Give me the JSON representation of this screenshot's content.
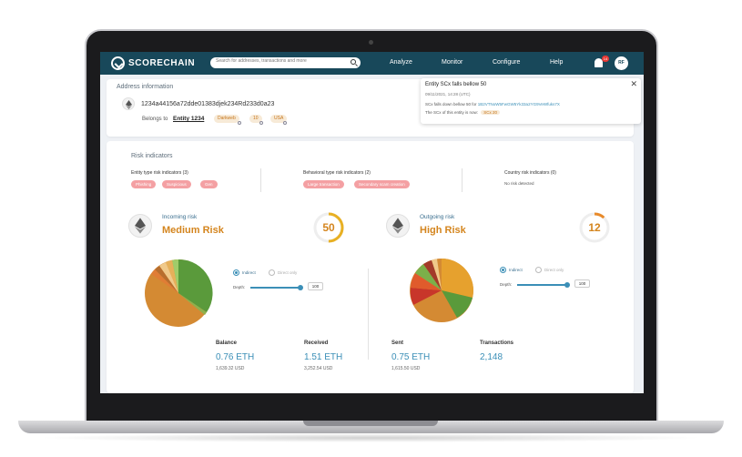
{
  "colors": {
    "nav": "#18485a",
    "accent": "#3b8fb7",
    "risk": "#d4851e",
    "pill_red": "#f4a0a3"
  },
  "nav": {
    "logo": "SCORECHAIN",
    "search_placeholder": "Search for addresses, transactions and more",
    "menu": [
      "Analyze",
      "Monitor",
      "Configure",
      "Help"
    ],
    "notification_count": "14",
    "avatar_initials": "RF"
  },
  "address": {
    "section_title": "Address information",
    "hash": "1234a44156a72dde01383djek234Rd233d0a23",
    "belongs_to_label": "Belongs to",
    "entity": "Entity 1234",
    "tags": [
      "Darkweb",
      "10",
      "USA"
    ]
  },
  "notification": {
    "title": "Entity SCx falls bellow 50",
    "date": "09/11/2021, 14:28 (UTC)",
    "line1_prefix": "SCx falls down bellow 50 for",
    "line1_address": "1B2VTNoW5FwGW5Yk33a2YG9VeWfuks7X",
    "line2_prefix": "The SCx of this entity is now:",
    "line2_value": "SCx 20"
  },
  "risk": {
    "section_title": "Risk indicators",
    "entity_type": {
      "title": "Entity type risk indicators (3)",
      "pills": [
        "Phishing",
        "Suspicious",
        "Gen"
      ]
    },
    "behavioral": {
      "title": "Behavioral type risk indicators (2)",
      "pills": [
        "Large transaction",
        "Secondary scam creation"
      ]
    },
    "country": {
      "title": "Country risk indicators (0)",
      "empty": "No risk detected"
    },
    "incoming": {
      "label": "Incoming risk",
      "level": "Medium Risk",
      "score": "50",
      "score_fraction": 0.5
    },
    "outgoing": {
      "label": "Outgoing risk",
      "level": "High Risk",
      "score": "12",
      "score_fraction": 0.12
    },
    "options": {
      "indirect": "Indirect",
      "direct": "Direct only",
      "depth_label": "Depth:",
      "depth_value": "100"
    }
  },
  "stats": [
    {
      "label": "Balance",
      "value": "0.76 ETH",
      "sub": "1,639.32 USD"
    },
    {
      "label": "Received",
      "value": "1.51 ETH",
      "sub": "3,252.54 USD"
    },
    {
      "label": "Sent",
      "value": "0.75 ETH",
      "sub": "1,615.50 USD"
    },
    {
      "label": "Transactions",
      "value": "2,148",
      "sub": ""
    }
  ]
}
